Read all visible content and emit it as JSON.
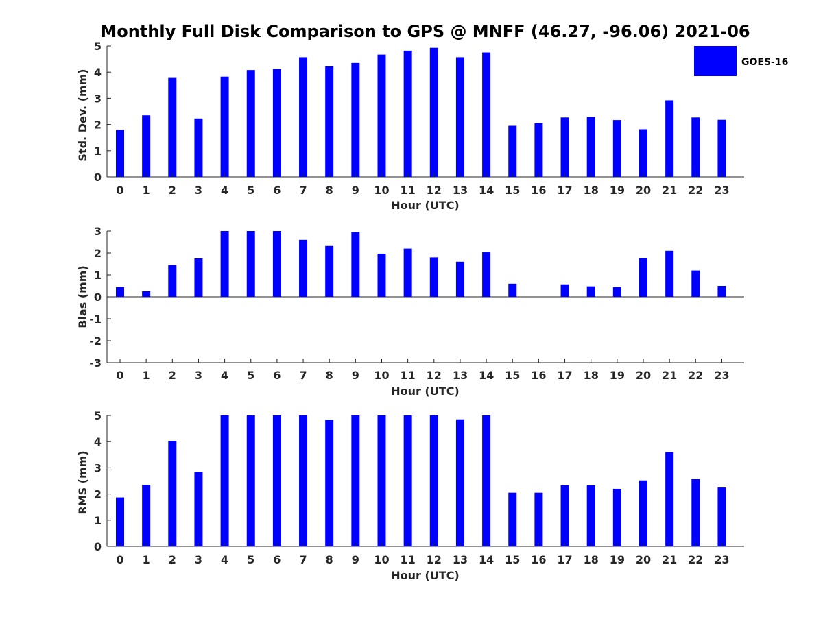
{
  "title": "Monthly Full Disk Comparison to GPS @ MNFF (46.27, -96.06) 2021-06",
  "colors": {
    "bar": "#0000ff",
    "axis": "#262626",
    "background": "#ffffff"
  },
  "legend": {
    "label": "GOES-16",
    "placement": "top-right"
  },
  "chart_data": [
    {
      "type": "bar",
      "title": "",
      "xlabel": "Hour (UTC)",
      "ylabel": "Std. Dev. (mm)",
      "categories": [
        "0",
        "1",
        "2",
        "3",
        "4",
        "5",
        "6",
        "7",
        "8",
        "9",
        "10",
        "11",
        "12",
        "13",
        "14",
        "15",
        "16",
        "17",
        "18",
        "19",
        "20",
        "21",
        "22",
        "23"
      ],
      "series": [
        {
          "name": "GOES-16",
          "values": [
            1.8,
            2.35,
            3.78,
            2.23,
            3.83,
            4.08,
            4.12,
            4.57,
            4.22,
            4.35,
            4.67,
            4.82,
            4.93,
            4.57,
            4.75,
            1.95,
            2.05,
            2.27,
            2.29,
            2.17,
            1.82,
            2.92,
            2.27,
            2.18
          ]
        }
      ],
      "ylim": [
        0,
        5
      ],
      "yticks": [
        0,
        1,
        2,
        3,
        4,
        5
      ],
      "grid": false
    },
    {
      "type": "bar",
      "title": "",
      "xlabel": "Hour (UTC)",
      "ylabel": "Bias (mm)",
      "categories": [
        "0",
        "1",
        "2",
        "3",
        "4",
        "5",
        "6",
        "7",
        "8",
        "9",
        "10",
        "11",
        "12",
        "13",
        "14",
        "15",
        "16",
        "17",
        "18",
        "19",
        "20",
        "21",
        "22",
        "23"
      ],
      "series": [
        {
          "name": "GOES-16",
          "values": [
            0.45,
            0.25,
            1.45,
            1.75,
            3.0,
            3.0,
            3.0,
            2.6,
            2.32,
            2.95,
            1.97,
            2.2,
            1.8,
            1.6,
            2.03,
            0.6,
            0.0,
            0.57,
            0.48,
            0.45,
            1.77,
            2.1,
            1.2,
            0.5
          ]
        }
      ],
      "ylim": [
        -3,
        3
      ],
      "yticks": [
        -3,
        -2,
        -1,
        0,
        1,
        2,
        3
      ],
      "zero_line": true,
      "grid": false
    },
    {
      "type": "bar",
      "title": "",
      "xlabel": "Hour (UTC)",
      "ylabel": "RMS (mm)",
      "categories": [
        "0",
        "1",
        "2",
        "3",
        "4",
        "5",
        "6",
        "7",
        "8",
        "9",
        "10",
        "11",
        "12",
        "13",
        "14",
        "15",
        "16",
        "17",
        "18",
        "19",
        "20",
        "21",
        "22",
        "23"
      ],
      "series": [
        {
          "name": "GOES-16",
          "values": [
            1.87,
            2.35,
            4.03,
            2.85,
            5.0,
            5.0,
            5.0,
            5.0,
            4.83,
            5.0,
            5.0,
            5.0,
            5.0,
            4.85,
            5.0,
            2.05,
            2.05,
            2.33,
            2.33,
            2.2,
            2.52,
            3.6,
            2.57,
            2.25
          ]
        }
      ],
      "ylim": [
        0,
        5
      ],
      "yticks": [
        0,
        1,
        2,
        3,
        4,
        5
      ],
      "grid": false
    }
  ]
}
